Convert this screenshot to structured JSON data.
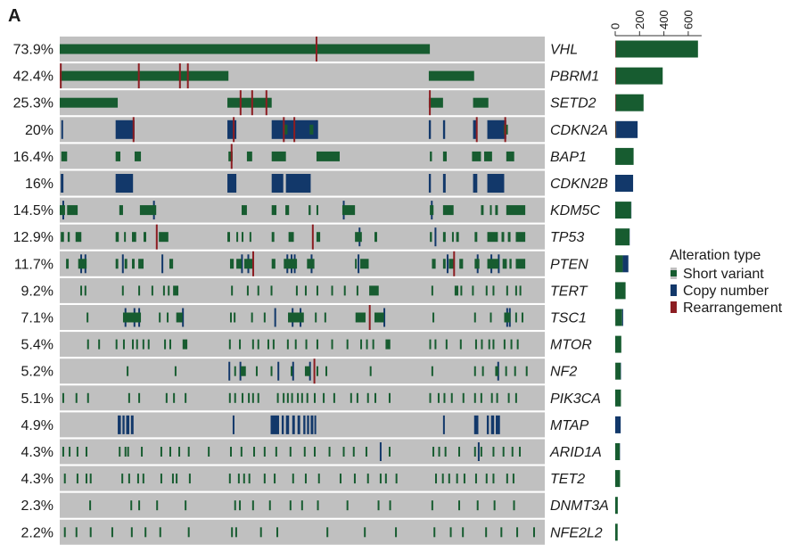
{
  "panel_label": "A",
  "colors": {
    "track": "#c0c0c0",
    "sv": "#175c30",
    "cn": "#12386a",
    "re": "#8c1d22"
  },
  "legend": {
    "title": "Alteration type",
    "sv": "Short variant",
    "cn": "Copy number",
    "re": "Rearrangement",
    "position": "right"
  },
  "chart_data": {
    "type": "heatmap",
    "x_range": [
      0,
      920
    ],
    "rows": [
      {
        "gene": "VHL",
        "percent": "73.9%",
        "counts": {
          "sv": 675,
          "cn": 0,
          "re": 5
        },
        "sv": [
          [
            0,
            702
          ]
        ],
        "cn": [],
        "re": [
          487
        ]
      },
      {
        "gene": "PBRM1",
        "percent": "42.4%",
        "counts": {
          "sv": 384,
          "cn": 0,
          "re": 6
        },
        "sv": [
          [
            0,
            320
          ],
          [
            700,
            786
          ]
        ],
        "cn": [],
        "re": [
          2,
          150,
          228,
          243
        ]
      },
      {
        "gene": "SETD2",
        "percent": "25.3%",
        "counts": {
          "sv": 228,
          "cn": 0,
          "re": 5
        },
        "sv": [
          [
            0,
            110
          ],
          [
            318,
            402
          ],
          [
            700,
            727
          ],
          [
            784,
            813
          ]
        ],
        "cn": [],
        "re": [
          343,
          365,
          392,
          702
        ]
      },
      {
        "gene": "CDKN2A",
        "percent": "20%",
        "counts": {
          "sv": 4,
          "cn": 176,
          "re": 4
        },
        "sv": [
          [
            425,
            432
          ],
          [
            474,
            481
          ],
          [
            842,
            850
          ]
        ],
        "cn": [
          [
            3,
            6
          ],
          [
            106,
            142
          ],
          [
            318,
            335
          ],
          [
            402,
            490
          ],
          [
            700,
            704
          ],
          [
            727,
            731
          ],
          [
            784,
            792
          ],
          [
            811,
            847
          ]
        ],
        "re": [
          140,
          330,
          425,
          445,
          791,
          845
        ]
      },
      {
        "gene": "BAP1",
        "percent": "16.4%",
        "counts": {
          "sv": 150,
          "cn": 0,
          "re": 1
        },
        "sv": [
          [
            3,
            14
          ],
          [
            106,
            115
          ],
          [
            142,
            154
          ],
          [
            320,
            328
          ],
          [
            355,
            365
          ],
          [
            402,
            429
          ],
          [
            487,
            531
          ],
          [
            702,
            706
          ],
          [
            727,
            734
          ],
          [
            782,
            799
          ],
          [
            805,
            820
          ],
          [
            847,
            862
          ]
        ],
        "cn": [],
        "re": [
          326
        ]
      },
      {
        "gene": "CDKN2B",
        "percent": "16%",
        "counts": {
          "sv": 0,
          "cn": 147,
          "re": 0
        },
        "sv": [],
        "cn": [
          [
            2,
            7
          ],
          [
            106,
            139
          ],
          [
            318,
            335
          ],
          [
            402,
            424
          ],
          [
            429,
            476
          ],
          [
            700,
            704
          ],
          [
            727,
            732
          ],
          [
            784,
            792
          ],
          [
            811,
            843
          ]
        ],
        "re": []
      },
      {
        "gene": "KDM5C",
        "percent": "14.5%",
        "counts": {
          "sv": 131,
          "cn": 2,
          "re": 0
        },
        "sv": [
          [
            0,
            10
          ],
          [
            14,
            34
          ],
          [
            113,
            120
          ],
          [
            152,
            183
          ],
          [
            345,
            355
          ],
          [
            402,
            411
          ],
          [
            428,
            435
          ],
          [
            472,
            476
          ],
          [
            487,
            490
          ],
          [
            536,
            560
          ],
          [
            702,
            709
          ],
          [
            727,
            747
          ],
          [
            799,
            804
          ],
          [
            816,
            819
          ],
          [
            826,
            831
          ],
          [
            847,
            883
          ]
        ],
        "cn": [
          5,
          177,
          537,
          704
        ],
        "re": []
      },
      {
        "gene": "TP53",
        "percent": "12.9%",
        "counts": {
          "sv": 116,
          "cn": 2,
          "re": 1
        },
        "sv": [
          [
            2,
            8
          ],
          [
            15,
            19
          ],
          [
            30,
            41
          ],
          [
            106,
            112
          ],
          [
            122,
            125
          ],
          [
            137,
            145
          ],
          [
            159,
            164
          ],
          [
            188,
            206
          ],
          [
            318,
            323
          ],
          [
            335,
            338
          ],
          [
            345,
            348
          ],
          [
            360,
            363
          ],
          [
            402,
            407
          ],
          [
            434,
            444
          ],
          [
            487,
            494
          ],
          [
            560,
            573
          ],
          [
            597,
            602
          ],
          [
            702,
            706
          ],
          [
            727,
            732
          ],
          [
            744,
            747
          ],
          [
            752,
            757
          ],
          [
            787,
            792
          ],
          [
            811,
            831
          ],
          [
            838,
            843
          ],
          [
            850,
            855
          ],
          [
            865,
            883
          ]
        ],
        "cn": [
          567,
          711
        ],
        "re": [
          184,
          480
        ]
      },
      {
        "gene": "PTEN",
        "percent": "11.7%",
        "counts": {
          "sv": 60,
          "cn": 46,
          "re": 2
        },
        "sv": [
          [
            12,
            17
          ],
          [
            35,
            51
          ],
          [
            106,
            111
          ],
          [
            123,
            128
          ],
          [
            137,
            142
          ],
          [
            149,
            159
          ],
          [
            208,
            215
          ],
          [
            323,
            330
          ],
          [
            335,
            345
          ],
          [
            350,
            368
          ],
          [
            402,
            409
          ],
          [
            425,
            450
          ],
          [
            469,
            483
          ],
          [
            560,
            563
          ],
          [
            570,
            586
          ],
          [
            706,
            713
          ],
          [
            727,
            732
          ],
          [
            738,
            749
          ],
          [
            758,
            765
          ],
          [
            787,
            796
          ],
          [
            811,
            833
          ],
          [
            840,
            848
          ],
          [
            853,
            857
          ],
          [
            865,
            883
          ]
        ],
        "cn": [
          39,
          47,
          118,
          193,
          344,
          356,
          430,
          438,
          444,
          476,
          565,
          734,
          791,
          817,
          831
        ],
        "re": [
          367,
          748
        ]
      },
      {
        "gene": "TERT",
        "percent": "9.2%",
        "counts": {
          "sv": 85,
          "cn": 0,
          "re": 0
        },
        "sv": [
          39,
          47,
          118,
          149,
          174,
          196,
          205,
          [
            215,
            225
          ],
          325,
          355,
          375,
          400,
          448,
          465,
          487,
          515,
          539,
          563,
          [
            587,
            605
          ],
          705,
          [
            749,
            756
          ],
          760,
          782,
          808,
          821,
          847,
          864,
          872
        ],
        "cn": [],
        "re": []
      },
      {
        "gene": "TSC1",
        "percent": "7.1%",
        "counts": {
          "sv": 56,
          "cn": 8,
          "re": 1
        },
        "sv": [
          51,
          [
            120,
            154
          ],
          188,
          203,
          [
            221,
            233
          ],
          323,
          330,
          363,
          387,
          [
            433,
            463
          ],
          484,
          502,
          [
            561,
            580
          ],
          [
            597,
            615
          ],
          707,
          786,
          816,
          [
            843,
            855
          ],
          864,
          876
        ],
        "cn": [
          123,
          140,
          149,
          232,
          407,
          440,
          455,
          614,
          847,
          852
        ],
        "re": [
          588
        ]
      },
      {
        "gene": "MTOR",
        "percent": "5.4%",
        "counts": {
          "sv": 50,
          "cn": 0,
          "re": 0
        },
        "sv": [
          52,
          73,
          106,
          120,
          137,
          145,
          157,
          167,
          198,
          208,
          [
            233,
            242
          ],
          321,
          340,
          365,
          375,
          394,
          404,
          431,
          446,
          466,
          487,
          515,
          544,
          570,
          581,
          593,
          [
            618,
            627
          ],
          701,
          711,
          732,
          759,
          788,
          799,
          813,
          821,
          842,
          855,
          867
        ],
        "cn": [],
        "re": []
      },
      {
        "gene": "NF2",
        "percent": "5.2%",
        "counts": {
          "sv": 44,
          "cn": 3,
          "re": 1
        },
        "sv": [
          127,
          218,
          331,
          [
            343,
            353
          ],
          372,
          400,
          438,
          [
            465,
            475
          ],
          487,
          504,
          588,
          705,
          786,
          801,
          [
            826,
            832
          ],
          845,
          862,
          884
        ],
        "cn": [
          320,
          341,
          413,
          441,
          473,
          830
        ],
        "re": [
          483
        ]
      },
      {
        "gene": "PIK3CA",
        "percent": "5.1%",
        "counts": {
          "sv": 47,
          "cn": 0,
          "re": 0
        },
        "sv": [
          5,
          30,
          52,
          130,
          149,
          201,
          215,
          237,
          321,
          331,
          345,
          357,
          365,
          375,
          412,
          423,
          431,
          439,
          450,
          458,
          468,
          482,
          499,
          519,
          551,
          563,
          583,
          597,
          624,
          701,
          717,
          728,
          742,
          764,
          786,
          798,
          818,
          828,
          850,
          864
        ],
        "cn": [],
        "re": []
      },
      {
        "gene": "MTAP",
        "percent": "4.9%",
        "counts": {
          "sv": 0,
          "cn": 45,
          "re": 0
        },
        "sv": [],
        "cn": [
          [
            110,
            116
          ],
          [
            119,
            123
          ],
          [
            126,
            132
          ],
          [
            135,
            140
          ],
          328,
          [
            400,
            416
          ],
          [
            421,
            425
          ],
          [
            429,
            435
          ],
          [
            441,
            446
          ],
          [
            451,
            456
          ],
          [
            462,
            466
          ],
          [
            469,
            473
          ],
          [
            476,
            481
          ],
          [
            483,
            486
          ],
          727,
          [
            786,
            794
          ],
          [
            810,
            814
          ],
          [
            818,
            824
          ],
          [
            827,
            835
          ]
        ],
        "re": []
      },
      {
        "gene": "ARID1A",
        "percent": "4.3%",
        "counts": {
          "sv": 38,
          "cn": 2,
          "re": 0
        },
        "sv": [
          5,
          17,
          32,
          49,
          112,
          123,
          128,
          154,
          191,
          208,
          225,
          243,
          281,
          323,
          343,
          367,
          387,
          409,
          436,
          463,
          482,
          510,
          537,
          556,
          580,
          624,
          707,
          718,
          730,
          756,
          786,
          798,
          821,
          840,
          857,
          871
        ],
        "cn": [
          607,
          793
        ],
        "re": []
      },
      {
        "gene": "TET2",
        "percent": "4.3%",
        "counts": {
          "sv": 40,
          "cn": 0,
          "re": 0
        },
        "sv": [
          8,
          32,
          49,
          57,
          117,
          130,
          147,
          157,
          191,
          213,
          220,
          245,
          321,
          338,
          348,
          358,
          387,
          406,
          441,
          465,
          490,
          531,
          558,
          583,
          607,
          617,
          637,
          712,
          725,
          737,
          752,
          766,
          788,
          808,
          821,
          847,
          859
        ],
        "cn": [],
        "re": []
      },
      {
        "gene": "DNMT3A",
        "percent": "2.3%",
        "counts": {
          "sv": 21,
          "cn": 0,
          "re": 0
        },
        "sv": [
          56,
          134,
          149,
          183,
          237,
          331,
          340,
          365,
          397,
          436,
          458,
          488,
          544,
          603,
          625,
          705,
          756,
          791,
          823,
          860
        ],
        "cn": [],
        "re": []
      },
      {
        "gene": "NFE2L2",
        "percent": "2.2%",
        "counts": {
          "sv": 20,
          "cn": 0,
          "re": 0
        },
        "sv": [
          8,
          30,
          57,
          98,
          135,
          161,
          189,
          243,
          325,
          333,
          380,
          411,
          506,
          577,
          636,
          709,
          740,
          763,
          807,
          836,
          866,
          898
        ],
        "cn": [],
        "re": []
      }
    ],
    "frequency_bars": {
      "type": "bar",
      "stacked": true,
      "ticks": [
        "0",
        "200",
        "400",
        "600"
      ],
      "xlim": [
        0,
        710
      ]
    }
  }
}
